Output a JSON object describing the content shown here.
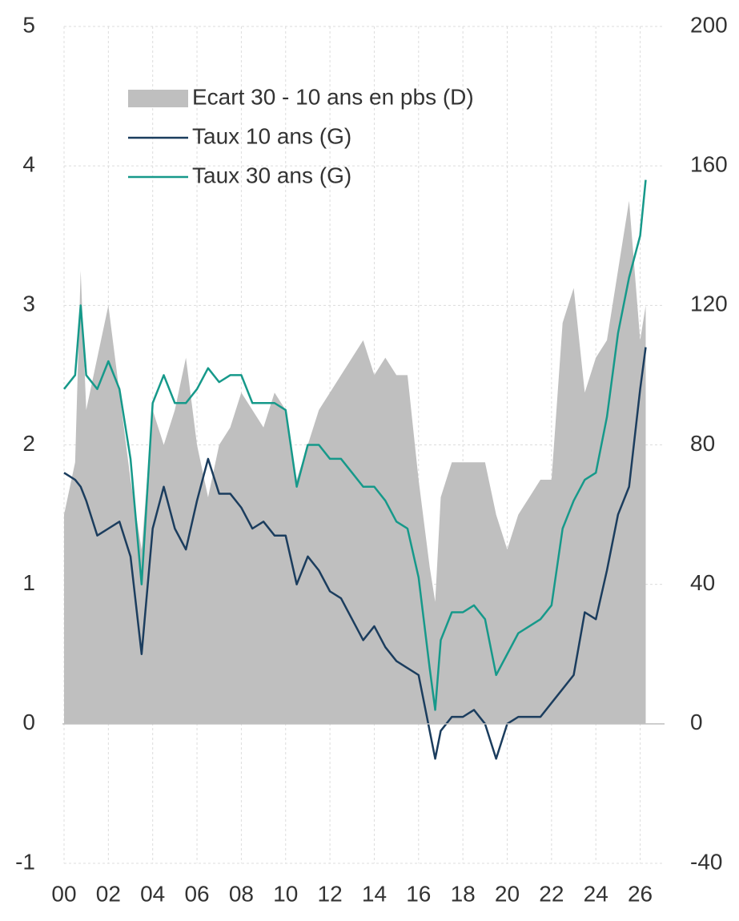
{
  "chart_data": {
    "type": "line",
    "x": [
      2000,
      2000.5,
      2000.75,
      2001,
      2001.5,
      2002,
      2002.5,
      2003,
      2003.5,
      2004,
      2004.5,
      2005,
      2005.5,
      2006,
      2006.5,
      2007,
      2007.5,
      2008,
      2008.5,
      2009,
      2009.5,
      2010,
      2010.5,
      2011,
      2011.5,
      2012,
      2012.5,
      2013,
      2013.5,
      2014,
      2014.5,
      2015,
      2015.5,
      2016,
      2016.5,
      2016.75,
      2017,
      2017.5,
      2018,
      2018.5,
      2019,
      2019.5,
      2020,
      2020.5,
      2021,
      2021.5,
      2022,
      2022.5,
      2023,
      2023.5,
      2024,
      2024.5,
      2025,
      2025.5,
      2026,
      2026.25
    ],
    "series": [
      {
        "name": "Ecart 30 - 10 ans en pbs (D)",
        "type": "area",
        "axis": "y2",
        "color": "#bfbfbf",
        "values": [
          60,
          75,
          130,
          90,
          105,
          120,
          95,
          70,
          50,
          90,
          80,
          90,
          105,
          80,
          65,
          80,
          85,
          95,
          90,
          85,
          95,
          90,
          70,
          80,
          90,
          95,
          100,
          105,
          110,
          100,
          105,
          100,
          100,
          70,
          45,
          35,
          65,
          75,
          75,
          75,
          75,
          60,
          50,
          60,
          65,
          70,
          70,
          115,
          125,
          95,
          105,
          110,
          130,
          150,
          110,
          120
        ]
      },
      {
        "name": "Taux 10 ans (G)",
        "type": "line",
        "color": "#1b3d5e",
        "values": [
          1.8,
          1.75,
          1.7,
          1.6,
          1.35,
          1.4,
          1.45,
          1.2,
          0.5,
          1.4,
          1.7,
          1.4,
          1.25,
          1.6,
          1.9,
          1.65,
          1.65,
          1.55,
          1.4,
          1.45,
          1.35,
          1.35,
          1.0,
          1.2,
          1.1,
          0.95,
          0.9,
          0.75,
          0.6,
          0.7,
          0.55,
          0.45,
          0.4,
          0.35,
          -0.05,
          -0.25,
          -0.05,
          0.05,
          0.05,
          0.1,
          0.0,
          -0.25,
          0.0,
          0.05,
          0.05,
          0.05,
          0.15,
          0.25,
          0.35,
          0.8,
          0.75,
          1.1,
          1.5,
          1.7,
          2.4,
          2.7
        ]
      },
      {
        "name": "Taux 30 ans (G)",
        "type": "line",
        "color": "#16998a",
        "values": [
          2.4,
          2.5,
          3.0,
          2.5,
          2.4,
          2.6,
          2.4,
          1.9,
          1.0,
          2.3,
          2.5,
          2.3,
          2.3,
          2.4,
          2.55,
          2.45,
          2.5,
          2.5,
          2.3,
          2.3,
          2.3,
          2.25,
          1.7,
          2.0,
          2.0,
          1.9,
          1.9,
          1.8,
          1.7,
          1.7,
          1.6,
          1.45,
          1.4,
          1.05,
          0.4,
          0.1,
          0.6,
          0.8,
          0.8,
          0.85,
          0.75,
          0.35,
          0.5,
          0.65,
          0.7,
          0.75,
          0.85,
          1.4,
          1.6,
          1.75,
          1.8,
          2.2,
          2.8,
          3.2,
          3.5,
          3.9
        ]
      }
    ],
    "xlim": [
      2000,
      2027.1
    ],
    "xticks": [
      {
        "value": 2000,
        "label": "00"
      },
      {
        "value": 2002,
        "label": "02"
      },
      {
        "value": 2004,
        "label": "04"
      },
      {
        "value": 2006,
        "label": "06"
      },
      {
        "value": 2008,
        "label": "08"
      },
      {
        "value": 2010,
        "label": "10"
      },
      {
        "value": 2012,
        "label": "12"
      },
      {
        "value": 2014,
        "label": "14"
      },
      {
        "value": 2016,
        "label": "16"
      },
      {
        "value": 2018,
        "label": "18"
      },
      {
        "value": 2020,
        "label": "20"
      },
      {
        "value": 2022,
        "label": "22"
      },
      {
        "value": 2024,
        "label": "24"
      },
      {
        "value": 2026,
        "label": "26"
      }
    ],
    "ylim": [
      -1,
      5
    ],
    "yticks": [
      -1,
      0,
      1,
      2,
      3,
      4,
      5
    ],
    "y2lim": [
      -40,
      200
    ],
    "y2ticks": [
      -40,
      0,
      40,
      80,
      120,
      160,
      200
    ],
    "grid": true,
    "legend": "upper left"
  }
}
